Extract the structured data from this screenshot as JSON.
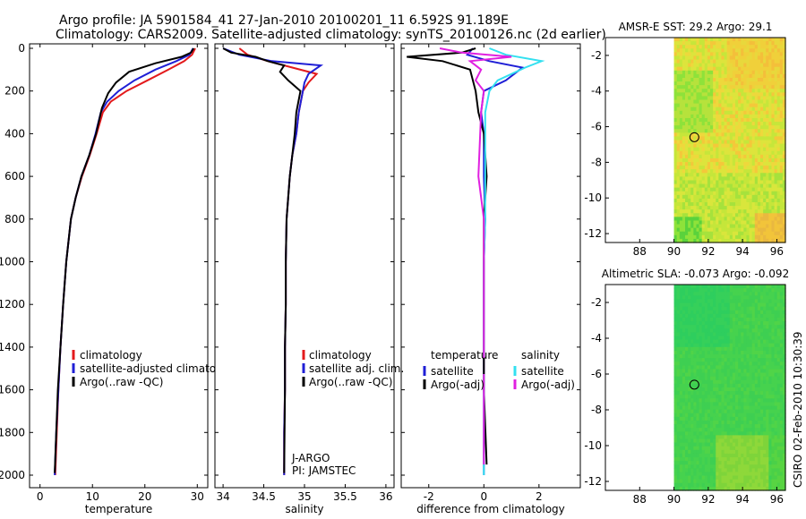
{
  "title_line1": "Argo profile: JA 5901584_41 27-Jan-2010 20100201_11 6.592S 91.189E",
  "title_line2": "Climatology: CARS2009. Satellite-adjusted climatology: synTS_20100126.nc (2d earlier)",
  "credit": "CSIRO 02-Feb-2010 10:30:39",
  "colors": {
    "climatology": "#e31a1c",
    "satellite": "#1f1fd6",
    "argo": "#000000",
    "sal_satellite": "#33e0f0",
    "sal_argo": "#e020e0"
  },
  "chart_data": [
    {
      "type": "line",
      "xlabel": "temperature",
      "ylabel": "",
      "xlim": [
        -2,
        32
      ],
      "ylim": [
        2000,
        0
      ],
      "yreverse": true,
      "xticks": [
        0,
        10,
        20,
        30
      ],
      "yticks": [
        0,
        200,
        400,
        600,
        800,
        1000,
        1200,
        1400,
        1600,
        1800,
        2000
      ],
      "legend": [
        "climatology",
        "satellite-adjusted climatology",
        "Argo(..raw -QC)"
      ],
      "series": [
        {
          "name": "climatology",
          "color_key": "climatology",
          "x": [
            29.6,
            29.0,
            27.5,
            24.5,
            20.5,
            16.5,
            13.5,
            12.0,
            10.8,
            9.5,
            8.0,
            6.8,
            5.9,
            5.0,
            4.4,
            3.9,
            3.5,
            3.2,
            2.9
          ],
          "y": [
            0,
            30,
            60,
            100,
            150,
            200,
            250,
            300,
            400,
            500,
            600,
            700,
            800,
            1000,
            1200,
            1400,
            1600,
            1800,
            2000
          ]
        },
        {
          "name": "satellite-adjusted climatology",
          "color_key": "satellite",
          "x": [
            29.2,
            28.5,
            26.0,
            22.0,
            18.0,
            15.0,
            12.8,
            11.6,
            10.6,
            9.4,
            7.9,
            6.8,
            5.9,
            5.0,
            4.4,
            3.9,
            3.5,
            3.1,
            2.8
          ],
          "y": [
            0,
            30,
            60,
            100,
            150,
            200,
            250,
            300,
            400,
            500,
            600,
            700,
            800,
            1000,
            1200,
            1400,
            1600,
            1800,
            2000
          ]
        },
        {
          "name": "Argo(..raw -QC)",
          "color_key": "argo",
          "x": [
            29.3,
            28.8,
            27.0,
            22.0,
            17.0,
            14.5,
            13.0,
            11.8,
            10.7,
            9.4,
            7.9,
            6.8,
            5.9,
            5.0,
            4.4,
            3.9,
            3.4,
            3.1,
            2.8
          ],
          "y": [
            0,
            20,
            40,
            70,
            110,
            160,
            210,
            280,
            400,
            500,
            600,
            700,
            800,
            1000,
            1200,
            1400,
            1600,
            1800,
            1990
          ]
        }
      ]
    },
    {
      "type": "line",
      "xlabel": "salinity",
      "ylabel": "",
      "xlim": [
        33.9,
        36.1
      ],
      "ylim": [
        2000,
        0
      ],
      "yreverse": true,
      "xticks": [
        34,
        34.5,
        35,
        35.5,
        36
      ],
      "legend": [
        "climatology",
        "satellite adj. clim.",
        "Argo(..raw -QC)"
      ],
      "annotations": [
        "J-ARGO",
        "PI: JAMSTEC"
      ],
      "series": [
        {
          "name": "climatology",
          "color_key": "climatology",
          "x": [
            34.2,
            34.3,
            34.55,
            34.85,
            35.15,
            35.05,
            34.98,
            34.93,
            34.9,
            34.85,
            34.82,
            34.8,
            34.78,
            34.77,
            34.77,
            34.76,
            34.76,
            34.75,
            34.75
          ],
          "y": [
            0,
            30,
            60,
            90,
            120,
            160,
            200,
            300,
            400,
            500,
            600,
            700,
            800,
            1000,
            1200,
            1400,
            1600,
            1800,
            2000
          ]
        },
        {
          "name": "satellite adj. clim.",
          "color_key": "satellite",
          "x": [
            34.0,
            34.2,
            34.6,
            35.2,
            35.05,
            35.0,
            34.98,
            34.93,
            34.9,
            34.85,
            34.82,
            34.8,
            34.78,
            34.77,
            34.77,
            34.76,
            34.76,
            34.75,
            34.75
          ],
          "y": [
            0,
            30,
            60,
            80,
            120,
            160,
            200,
            300,
            400,
            500,
            600,
            700,
            800,
            1000,
            1200,
            1400,
            1600,
            1800,
            2000
          ]
        },
        {
          "name": "Argo(..raw -QC)",
          "color_key": "argo",
          "x": [
            34.0,
            34.1,
            34.4,
            34.55,
            34.75,
            34.7,
            34.8,
            34.95,
            34.9,
            34.88,
            34.85,
            34.82,
            34.8,
            34.78,
            34.77,
            34.77,
            34.76,
            34.76,
            34.75
          ],
          "y": [
            0,
            20,
            40,
            60,
            80,
            110,
            150,
            200,
            300,
            400,
            500,
            600,
            700,
            800,
            1000,
            1200,
            1400,
            1600,
            1990
          ]
        }
      ]
    },
    {
      "type": "line",
      "xlabel": "difference from climatology",
      "ylabel": "",
      "xlim": [
        -3,
        3.5
      ],
      "ylim": [
        2000,
        0
      ],
      "yreverse": true,
      "xticks": [
        -2,
        0,
        2
      ],
      "legend_temperature_title": "temperature",
      "legend_salinity_title": "salinity",
      "legend": [
        "satellite",
        "Argo(-adj)",
        "satellite",
        "Argo(-adj)"
      ],
      "series": [
        {
          "name": "satellite",
          "group": "temperature",
          "color_key": "satellite",
          "x": [
            -0.4,
            -0.6,
            0.2,
            1.4,
            0.8,
            0.0,
            -0.1,
            0.0,
            0.0,
            0.05,
            0.0,
            0.0,
            0.0,
            0.0,
            0.0
          ],
          "y": [
            0,
            30,
            60,
            90,
            150,
            200,
            300,
            400,
            600,
            800,
            1000,
            1200,
            1400,
            1600,
            2000
          ]
        },
        {
          "name": "Argo(-adj)",
          "group": "temperature",
          "color_key": "argo",
          "x": [
            -0.3,
            -0.8,
            -2.8,
            -1.5,
            -0.5,
            -0.3,
            -0.2,
            0.0,
            0.1,
            0.0,
            0.0,
            0.0,
            0.0,
            0.0,
            0.1
          ],
          "y": [
            0,
            20,
            40,
            60,
            100,
            200,
            300,
            400,
            600,
            800,
            1000,
            1200,
            1400,
            1600,
            1950
          ]
        },
        {
          "name": "satellite",
          "group": "salinity",
          "color_key": "sal_satellite",
          "x": [
            0.2,
            0.8,
            2.1,
            1.5,
            0.5,
            0.2,
            0.05,
            0.05,
            0.05,
            0.05,
            0.0,
            0.0,
            0.0,
            0.0,
            0.0
          ],
          "y": [
            0,
            30,
            60,
            90,
            150,
            200,
            300,
            400,
            600,
            800,
            1000,
            1200,
            1400,
            1600,
            2000
          ]
        },
        {
          "name": "Argo(-adj)",
          "group": "salinity",
          "color_key": "sal_argo",
          "x": [
            -1.6,
            -0.8,
            1.0,
            -0.5,
            -0.1,
            -0.3,
            0.0,
            -0.1,
            -0.2,
            0.0,
            0.0,
            0.0,
            0.0,
            0.0,
            0.0
          ],
          "y": [
            0,
            20,
            40,
            60,
            100,
            150,
            200,
            300,
            600,
            800,
            1000,
            1200,
            1400,
            1600,
            1950
          ]
        }
      ]
    },
    {
      "type": "heatmap",
      "title": "AMSR-E SST: 29.2 Argo: 29.1",
      "xlim": [
        86,
        96.5
      ],
      "ylim": [
        -12.5,
        -1
      ],
      "xticks": [
        88,
        90,
        92,
        94,
        96
      ],
      "yticks": [
        -2,
        -4,
        -6,
        -8,
        -10,
        -12
      ],
      "data_xlim": [
        90,
        96.5
      ],
      "marker": {
        "x": 91.189,
        "y": -6.592
      }
    },
    {
      "type": "heatmap",
      "title": "Altimetric SLA: -0.073 Argo: -0.092",
      "xlim": [
        86,
        96.5
      ],
      "ylim": [
        -12.5,
        -1
      ],
      "xticks": [
        88,
        90,
        92,
        94,
        96
      ],
      "yticks": [
        -2,
        -4,
        -6,
        -8,
        -10,
        -12
      ],
      "data_xlim": [
        90,
        96.5
      ],
      "marker": {
        "x": 91.189,
        "y": -6.592
      }
    }
  ]
}
